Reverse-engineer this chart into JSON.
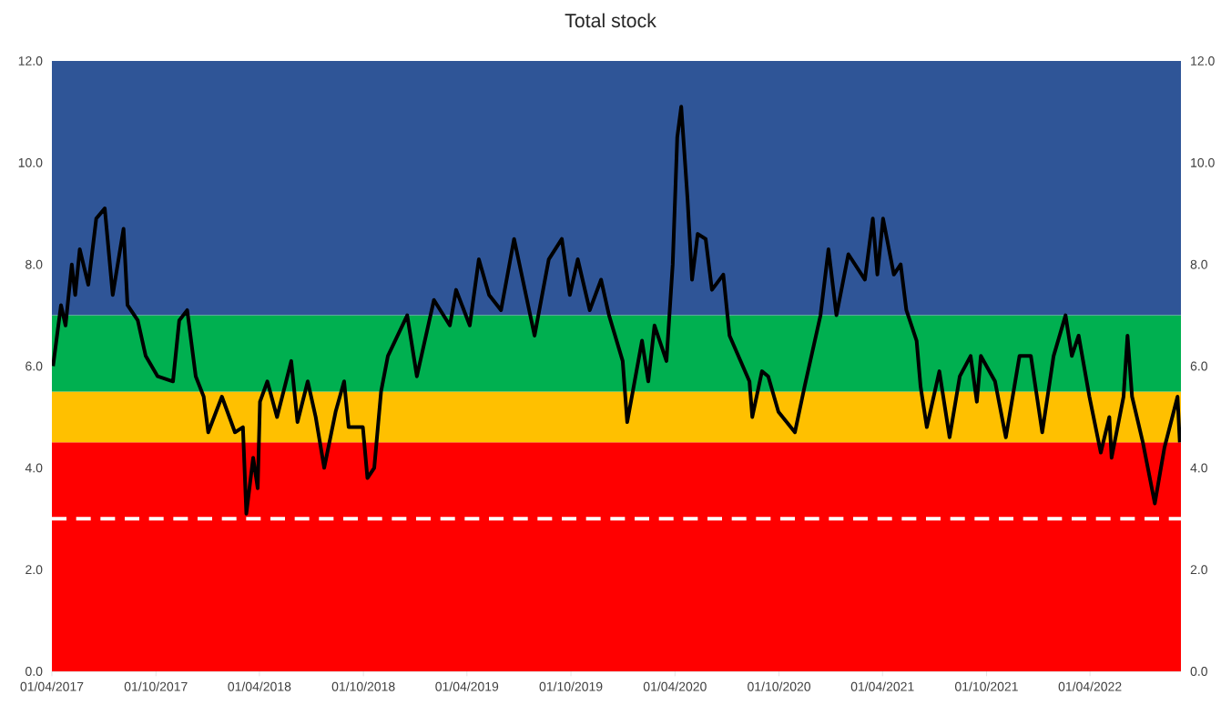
{
  "chart_data": {
    "type": "line",
    "title": "Total stock",
    "x": [
      "2017-04-03",
      "2017-04-17",
      "2017-04-25",
      "2017-05-06",
      "2017-05-12",
      "2017-05-20",
      "2017-06-04",
      "2017-06-18",
      "2017-07-03",
      "2017-07-17",
      "2017-08-05",
      "2017-08-12",
      "2017-08-30",
      "2017-09-13",
      "2017-10-04",
      "2017-10-31",
      "2017-11-11",
      "2017-11-25",
      "2017-12-10",
      "2017-12-24",
      "2018-01-01",
      "2018-01-25",
      "2018-02-17",
      "2018-03-03",
      "2018-03-09",
      "2018-03-21",
      "2018-03-29",
      "2018-04-02",
      "2018-04-15",
      "2018-05-02",
      "2018-05-27",
      "2018-06-07",
      "2018-06-25",
      "2018-07-09",
      "2018-07-24",
      "2018-08-13",
      "2018-08-28",
      "2018-09-05",
      "2018-09-30",
      "2018-10-08",
      "2018-10-20",
      "2018-11-01",
      "2018-11-13",
      "2018-12-17",
      "2019-01-03",
      "2019-02-02",
      "2019-03-02",
      "2019-03-13",
      "2019-04-06",
      "2019-04-22",
      "2019-05-10",
      "2019-05-31",
      "2019-06-23",
      "2019-07-29",
      "2019-08-23",
      "2019-09-15",
      "2019-09-29",
      "2019-10-13",
      "2019-11-03",
      "2019-11-23",
      "2019-12-07",
      "2019-12-31",
      "2020-01-08",
      "2020-02-03",
      "2020-02-14",
      "2020-02-25",
      "2020-03-17",
      "2020-03-28",
      "2020-04-05",
      "2020-04-12",
      "2020-04-23",
      "2020-05-01",
      "2020-05-11",
      "2020-05-25",
      "2020-06-05",
      "2020-06-25",
      "2020-07-06",
      "2020-08-10",
      "2020-08-15",
      "2020-09-01",
      "2020-09-12",
      "2020-09-30",
      "2020-10-29",
      "2020-11-15",
      "2020-12-13",
      "2020-12-27",
      "2021-01-10",
      "2021-01-31",
      "2021-03-01",
      "2021-03-15",
      "2021-03-23",
      "2021-04-02",
      "2021-04-21",
      "2021-05-03",
      "2021-05-13",
      "2021-05-31",
      "2021-06-07",
      "2021-06-18",
      "2021-07-10",
      "2021-07-28",
      "2021-08-15",
      "2021-09-03",
      "2021-09-14",
      "2021-09-21",
      "2021-10-16",
      "2021-11-04",
      "2021-11-28",
      "2021-12-18",
      "2022-01-07",
      "2022-01-27",
      "2022-02-17",
      "2022-02-28",
      "2022-03-12",
      "2022-03-31",
      "2022-04-20",
      "2022-05-05",
      "2022-05-09",
      "2022-05-30",
      "2022-06-06",
      "2022-06-14",
      "2022-07-03",
      "2022-07-24",
      "2022-08-10",
      "2022-09-02",
      "2022-09-06"
    ],
    "series": [
      {
        "color": "#000000",
        "values": [
          6.0,
          7.2,
          6.8,
          8.0,
          7.4,
          8.3,
          7.6,
          8.9,
          9.1,
          7.4,
          8.7,
          7.2,
          6.9,
          6.2,
          5.8,
          5.7,
          6.9,
          7.1,
          5.8,
          5.4,
          4.7,
          5.4,
          4.7,
          4.8,
          3.1,
          4.2,
          3.6,
          5.3,
          5.7,
          5.0,
          6.1,
          4.9,
          5.7,
          5.0,
          4.0,
          5.1,
          5.7,
          4.8,
          4.8,
          3.8,
          4.0,
          5.5,
          6.2,
          7.0,
          5.8,
          7.3,
          6.8,
          7.5,
          6.8,
          8.1,
          7.4,
          7.1,
          8.5,
          6.6,
          8.1,
          8.5,
          7.4,
          8.1,
          7.1,
          7.7,
          7.0,
          6.1,
          4.9,
          6.5,
          5.7,
          6.8,
          6.1,
          8.0,
          10.5,
          11.1,
          9.3,
          7.7,
          8.6,
          8.5,
          7.5,
          7.8,
          6.6,
          5.7,
          5.0,
          5.9,
          5.8,
          5.1,
          4.7,
          5.6,
          7.0,
          8.3,
          7.0,
          8.2,
          7.7,
          8.9,
          7.8,
          8.9,
          7.8,
          8.0,
          7.1,
          6.5,
          5.6,
          4.8,
          5.9,
          4.6,
          5.8,
          6.2,
          5.3,
          6.2,
          5.7,
          4.6,
          6.2,
          6.2,
          4.7,
          6.2,
          7.0,
          6.2,
          6.6,
          5.4,
          4.3,
          5.0,
          4.2,
          5.4,
          6.6,
          5.4,
          4.5,
          3.3,
          4.4,
          5.4,
          4.5
        ]
      }
    ],
    "xlim": [
      "2017-04-01",
      "2022-09-08"
    ],
    "xticks": [
      {
        "value": "2017-04-01",
        "label": "01/04/2017"
      },
      {
        "value": "2017-10-01",
        "label": "01/10/2017"
      },
      {
        "value": "2018-04-01",
        "label": "01/04/2018"
      },
      {
        "value": "2018-10-01",
        "label": "01/10/2018"
      },
      {
        "value": "2019-04-01",
        "label": "01/04/2019"
      },
      {
        "value": "2019-10-01",
        "label": "01/10/2019"
      },
      {
        "value": "2020-04-01",
        "label": "01/04/2020"
      },
      {
        "value": "2020-10-01",
        "label": "01/10/2020"
      },
      {
        "value": "2021-04-01",
        "label": "01/04/2021"
      },
      {
        "value": "2021-10-01",
        "label": "01/10/2021"
      },
      {
        "value": "2022-04-01",
        "label": "01/04/2022"
      }
    ],
    "ylim": [
      0,
      12
    ],
    "yticks": [
      {
        "value": 0,
        "label": "0.0"
      },
      {
        "value": 2,
        "label": "2.0"
      },
      {
        "value": 4,
        "label": "4.0"
      },
      {
        "value": 6,
        "label": "6.0"
      },
      {
        "value": 8,
        "label": "8.0"
      },
      {
        "value": 10,
        "label": "10.0"
      },
      {
        "value": 12,
        "label": "12.0"
      }
    ],
    "y2lim": [
      0,
      12
    ],
    "y2ticks": [
      {
        "value": 0,
        "label": "0.0"
      },
      {
        "value": 2,
        "label": "2.0"
      },
      {
        "value": 4,
        "label": "4.0"
      },
      {
        "value": 6,
        "label": "6.0"
      },
      {
        "value": 8,
        "label": "8.0"
      },
      {
        "value": 10,
        "label": "10.0"
      },
      {
        "value": 12,
        "label": "12.0"
      }
    ],
    "bands": [
      {
        "axis": "y",
        "from": 0,
        "to": 4.5,
        "color": "#ff0000"
      },
      {
        "axis": "y",
        "from": 4.5,
        "to": 5.5,
        "color": "#ffc000"
      },
      {
        "axis": "y",
        "from": 5.5,
        "to": 7,
        "color": "#00b050"
      },
      {
        "axis": "y",
        "from": 7,
        "to": 12,
        "color": "#2f5597"
      }
    ],
    "ref_lines": [
      {
        "axis": "y",
        "value": 3,
        "color": "#ffffff",
        "line_style": "dashed"
      }
    ],
    "grid": false,
    "marker": "none",
    "line_style": "solid"
  }
}
